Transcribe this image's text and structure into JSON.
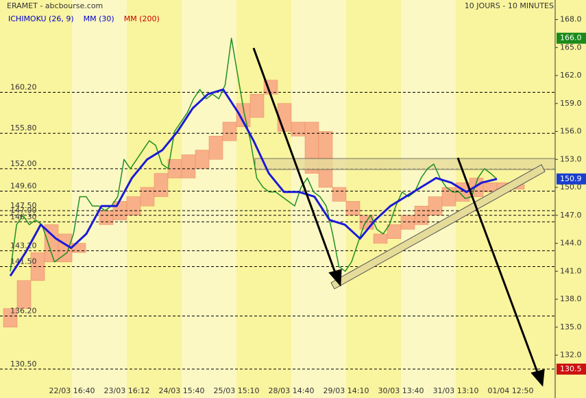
{
  "chart_data": {
    "type": "line",
    "title": "ERAMET - abcbourse.com",
    "subtitle": "10 JOURS - 10 MINUTES",
    "legend": [
      {
        "name": "ICHIMOKU (26, 9)",
        "color": "#0000cc"
      },
      {
        "name": "MM (30)",
        "color": "#0000cc"
      },
      {
        "name": "MM (200)",
        "color": "#cc0000"
      }
    ],
    "categories": [
      "22/03 16:40",
      "23/03 16:12",
      "24/03 15:40",
      "25/03 15:10",
      "28/03 14:40",
      "29/03 14:10",
      "30/03 13:40",
      "31/03 13:10",
      "01/04 12:50"
    ],
    "ylim": [
      127.4,
      170.1
    ],
    "yticks": [
      {
        "value": 132,
        "label": "132.0"
      },
      {
        "value": 135,
        "label": "135.0"
      },
      {
        "value": 138,
        "label": "138.0"
      },
      {
        "value": 141,
        "label": "141.0"
      },
      {
        "value": 144,
        "label": "144.0"
      },
      {
        "value": 147,
        "label": "147.0"
      },
      {
        "value": 150,
        "label": "150.0"
      },
      {
        "value": 153,
        "label": "153.0"
      },
      {
        "value": 156,
        "label": "156.0"
      },
      {
        "value": 159,
        "label": "159.0"
      },
      {
        "value": 162,
        "label": "162.0"
      },
      {
        "value": 165,
        "label": "165.0"
      },
      {
        "value": 168,
        "label": "168.0"
      }
    ],
    "levels": [
      {
        "value": 160.2,
        "label": "160.20"
      },
      {
        "value": 155.8,
        "label": "155.80"
      },
      {
        "value": 152,
        "label": "152.00"
      },
      {
        "value": 149.6,
        "label": "149.60"
      },
      {
        "value": 147.5,
        "label": "147.50"
      },
      {
        "value": 147,
        "label": "147.00"
      },
      {
        "value": 146.3,
        "label": "146.30"
      },
      {
        "value": 143.2,
        "label": "143.20"
      },
      {
        "value": 141.5,
        "label": "141.50"
      },
      {
        "value": 136.2,
        "label": "136.20"
      },
      {
        "value": 130.5,
        "label": "130.50"
      }
    ],
    "markers": [
      {
        "value": 166,
        "label": "166.0",
        "color": "#1a8a1a"
      },
      {
        "value": 150.9,
        "color": "#1a3fcc"
      },
      {
        "value": 130.5,
        "color": "#cc1111"
      }
    ],
    "price": [
      141,
      146,
      147,
      146,
      146.5,
      146,
      144,
      142,
      142.5,
      143,
      145,
      149,
      149,
      148,
      148,
      147.5,
      148,
      149,
      153,
      152,
      153,
      154,
      155,
      154.5,
      152.5,
      152,
      156,
      157,
      158,
      159.5,
      160.5,
      159.5,
      160,
      159.5,
      161,
      166,
      162,
      158,
      155,
      151,
      150,
      149.5,
      149.5,
      149,
      148.5,
      148,
      150,
      151,
      149.5,
      149,
      148,
      145,
      141.5,
      141,
      142,
      144,
      146,
      147,
      145.5,
      145,
      146,
      148,
      149.5,
      149,
      149.5,
      151,
      152,
      152.5,
      151,
      150,
      149.5,
      149.5,
      148.8,
      149,
      151,
      152,
      151.5,
      150.9
    ],
    "price_color": "#1f8f1f",
    "mm30": [
      140.5,
      143,
      146,
      144.5,
      143.5,
      145,
      148,
      148,
      151,
      153,
      154,
      156,
      158.5,
      160,
      160.5,
      158,
      155,
      151.5,
      149.5,
      149.5,
      149,
      146.5,
      146,
      144.5,
      146.5,
      148,
      149,
      150,
      151,
      150.5,
      149.5,
      150.5,
      150.9
    ],
    "mm30_color": "#1a1ad6",
    "span_a": [
      137,
      140,
      143,
      146,
      145,
      144,
      145,
      147.5,
      148.5,
      149,
      150,
      151.5,
      153,
      153.5,
      154,
      155.5,
      157,
      159,
      160,
      161.5,
      159,
      157,
      157,
      156,
      150,
      148.5,
      147,
      145,
      146,
      147,
      148,
      149,
      150,
      150.5,
      151,
      150.5,
      150.5,
      150.3
    ],
    "span_b": [
      135,
      137,
      140,
      142,
      142,
      143,
      145,
      146,
      146.5,
      147,
      148,
      149,
      151,
      151,
      152,
      153,
      155,
      156.5,
      157.5,
      160,
      156,
      155.5,
      151.5,
      150,
      148.5,
      147,
      145.5,
      144,
      144.5,
      145.5,
      146,
      147,
      148,
      148.5,
      149,
      149.5,
      149.5,
      149.8
    ],
    "cloud_color": "#f8b088"
  }
}
